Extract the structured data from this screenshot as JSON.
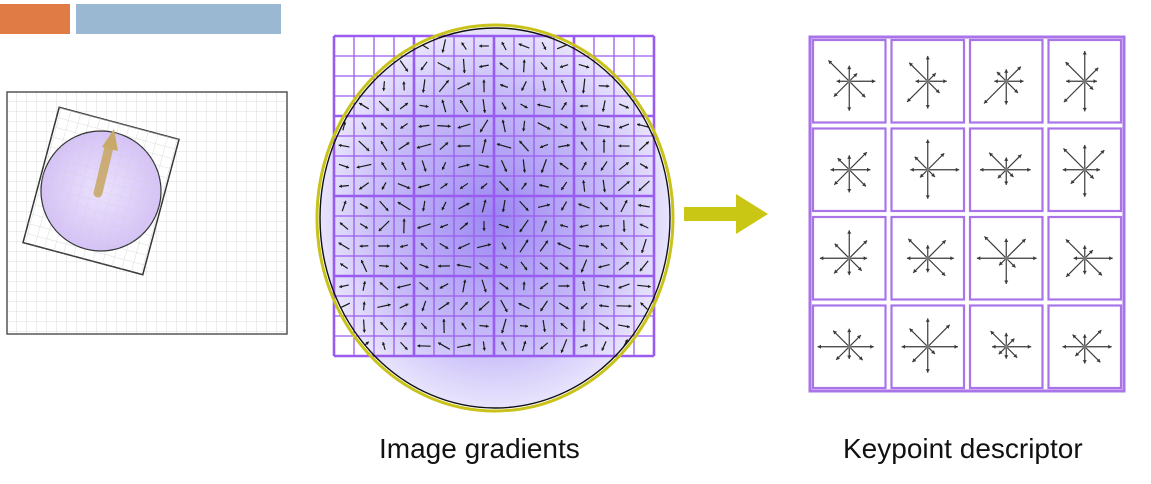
{
  "header": {
    "colors": {
      "orange": "#e07b45",
      "blue": "#9ab8d2"
    }
  },
  "patch": {
    "grid": "light",
    "shape": "rotated-square-with-circle",
    "arrow_color": "#c9a96a"
  },
  "gradients": {
    "caption": "Image gradients",
    "grid_color": "#9a5cf0",
    "ellipse_stroke": "#c8c21a",
    "fill_color": "#b8a8f5"
  },
  "arrow": {
    "icon": "right-arrow-icon",
    "color": "#c9c614"
  },
  "descriptor": {
    "caption": "Keypoint descriptor",
    "grid_color": "#a874e8",
    "rows": 4,
    "cols": 4
  }
}
